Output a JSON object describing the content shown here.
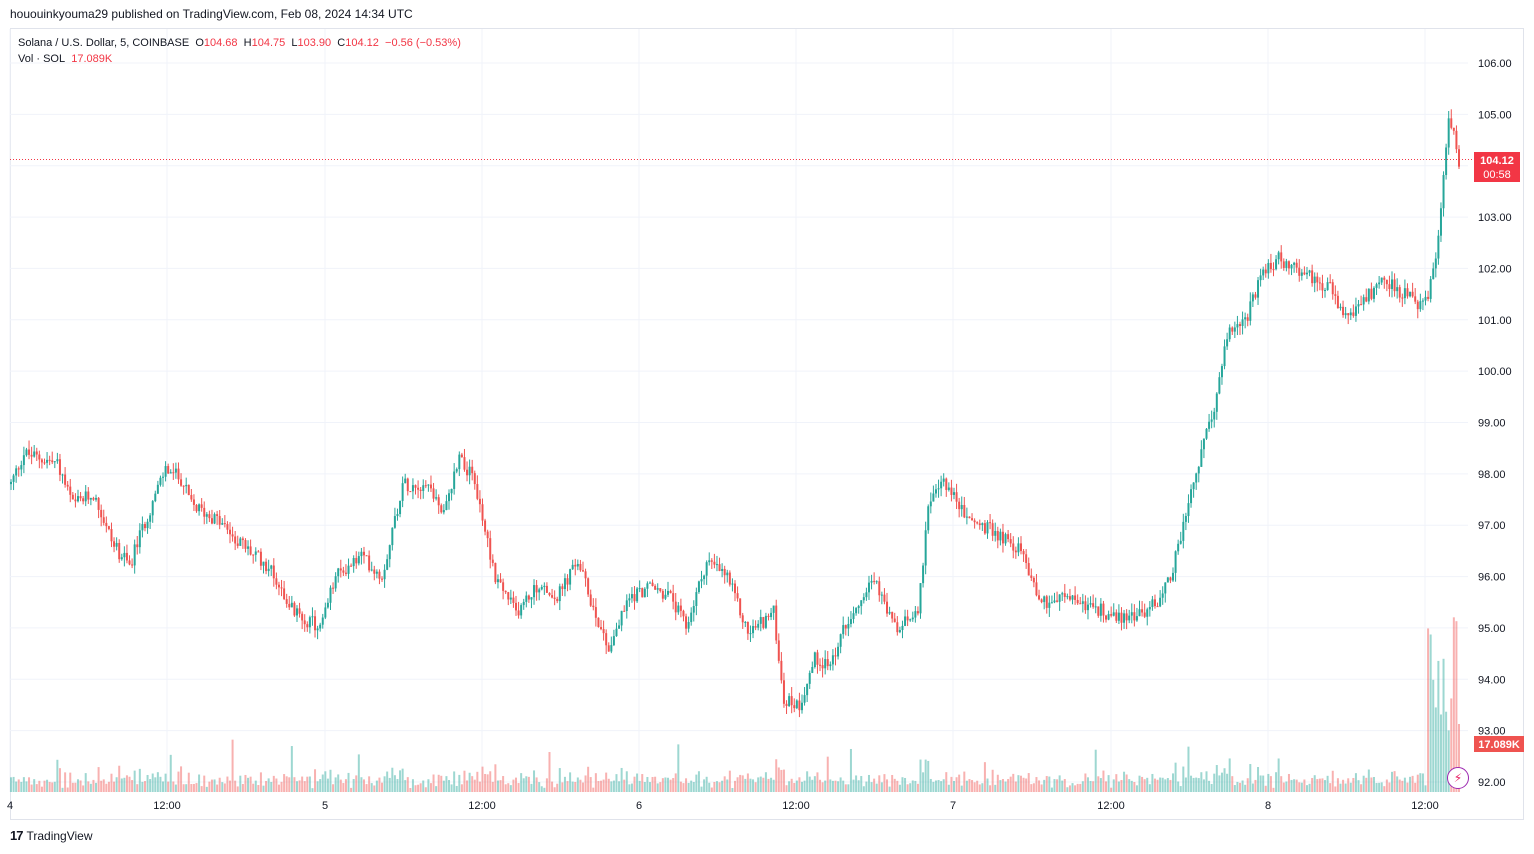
{
  "header": {
    "publisher": "hououinkyouma29 published on TradingView.com, Feb 08, 2024 14:34 UTC"
  },
  "legend": {
    "symbol": "Solana / U.S. Dollar, 5, COINBASE",
    "o_label": "O",
    "o_value": "104.68",
    "h_label": "H",
    "h_value": "104.75",
    "l_label": "L",
    "l_value": "103.90",
    "c_label": "C",
    "c_value": "104.12",
    "change": "−0.56 (−0.53%)",
    "vol_label": "Vol · SOL",
    "vol_value": "17.089K"
  },
  "price_tag": {
    "price": "104.12",
    "countdown": "00:58"
  },
  "vol_tag": "17.089K",
  "footer": {
    "logo": "17",
    "brand": "TradingView"
  },
  "colors": {
    "up": "#26a69a",
    "down": "#ef5350",
    "grid": "#f0f3fa",
    "last": "#f23645"
  },
  "chart_data": {
    "type": "candlestick",
    "title": "Solana / U.S. Dollar, 5, COINBASE",
    "ylim": [
      91.8,
      106.4
    ],
    "y_ticks": [
      "106.00",
      "105.00",
      "104.00",
      "103.00",
      "102.00",
      "101.00",
      "100.00",
      "99.00",
      "98.00",
      "97.00",
      "96.00",
      "95.00",
      "94.00",
      "93.00",
      "92.00"
    ],
    "x_ticks": [
      "4",
      "12:00",
      "5",
      "12:00",
      "6",
      "12:00",
      "7",
      "12:00",
      "8",
      "12:00"
    ],
    "last_price": 104.12,
    "anchors": [
      [
        0,
        97.8
      ],
      [
        5,
        98.4
      ],
      [
        18,
        98.2
      ],
      [
        24,
        97.4
      ],
      [
        32,
        97.6
      ],
      [
        40,
        96.6
      ],
      [
        46,
        96.2
      ],
      [
        50,
        96.8
      ],
      [
        60,
        98.1
      ],
      [
        66,
        97.9
      ],
      [
        70,
        97.4
      ],
      [
        80,
        97.1
      ],
      [
        90,
        96.6
      ],
      [
        100,
        96.2
      ],
      [
        110,
        95.3
      ],
      [
        120,
        95.0
      ],
      [
        126,
        96.0
      ],
      [
        136,
        96.4
      ],
      [
        144,
        96.0
      ],
      [
        152,
        97.8
      ],
      [
        162,
        97.8
      ],
      [
        168,
        97.2
      ],
      [
        174,
        98.4
      ],
      [
        180,
        97.8
      ],
      [
        188,
        96.0
      ],
      [
        196,
        95.3
      ],
      [
        204,
        95.8
      ],
      [
        212,
        95.6
      ],
      [
        220,
        96.3
      ],
      [
        226,
        95.4
      ],
      [
        232,
        94.6
      ],
      [
        240,
        95.6
      ],
      [
        248,
        95.8
      ],
      [
        256,
        95.6
      ],
      [
        262,
        95.0
      ],
      [
        270,
        96.3
      ],
      [
        278,
        96.0
      ],
      [
        286,
        94.9
      ],
      [
        296,
        95.3
      ],
      [
        300,
        93.6
      ],
      [
        306,
        93.5
      ],
      [
        312,
        94.4
      ],
      [
        318,
        94.3
      ],
      [
        326,
        95.3
      ],
      [
        334,
        96.0
      ],
      [
        344,
        94.9
      ],
      [
        352,
        95.4
      ],
      [
        356,
        97.3
      ],
      [
        362,
        97.9
      ],
      [
        370,
        97.2
      ],
      [
        376,
        97.0
      ],
      [
        384,
        96.8
      ],
      [
        392,
        96.5
      ],
      [
        400,
        95.5
      ],
      [
        410,
        95.6
      ],
      [
        420,
        95.4
      ],
      [
        430,
        95.2
      ],
      [
        440,
        95.3
      ],
      [
        446,
        95.6
      ],
      [
        450,
        96.0
      ],
      [
        456,
        97.2
      ],
      [
        462,
        98.4
      ],
      [
        468,
        99.5
      ],
      [
        472,
        100.7
      ],
      [
        480,
        101.1
      ],
      [
        486,
        101.9
      ],
      [
        492,
        102.2
      ],
      [
        498,
        102.0
      ],
      [
        506,
        101.8
      ],
      [
        512,
        101.6
      ],
      [
        518,
        101.0
      ],
      [
        526,
        101.4
      ],
      [
        532,
        101.8
      ],
      [
        538,
        101.6
      ],
      [
        546,
        101.3
      ],
      [
        550,
        101.4
      ],
      [
        554,
        102.6
      ],
      [
        558,
        104.9
      ],
      [
        560,
        104.8
      ],
      [
        562,
        104.12
      ]
    ],
    "volume_axis_max": 17.089
  }
}
